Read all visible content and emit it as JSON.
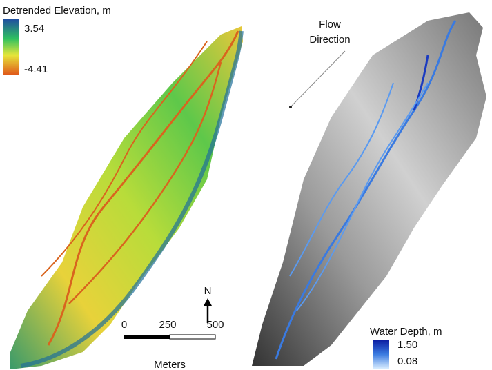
{
  "left_map": {
    "legend": {
      "title": "Detrended Elevation, m",
      "max": "3.54",
      "min": "-4.41"
    }
  },
  "right_map": {
    "legend": {
      "title": "Water Depth, m",
      "max": "1.50",
      "min": "0.08"
    },
    "annotation": {
      "lines": [
        "Flow",
        "Direction"
      ]
    }
  },
  "north_arrow": {
    "label": "N"
  },
  "scale_bar": {
    "ticks": [
      0,
      250,
      500
    ],
    "unit": "Meters"
  }
}
